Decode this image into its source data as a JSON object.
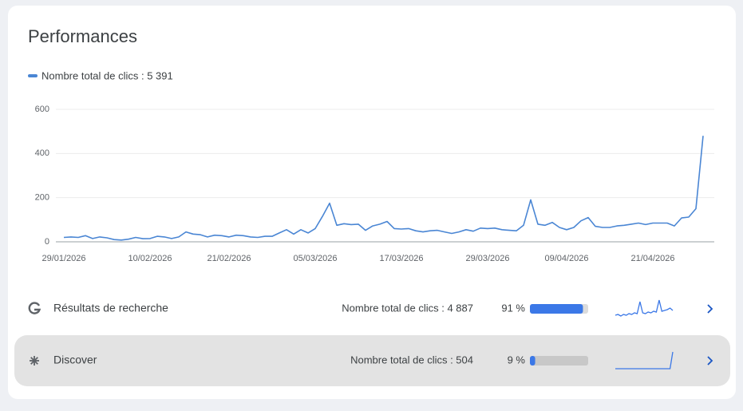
{
  "chart_data": {
    "type": "line",
    "title": "Performances",
    "categories": [
      "29/01/2026",
      null,
      null,
      null,
      null,
      null,
      null,
      null,
      null,
      null,
      null,
      null,
      "10/02/2026",
      null,
      null,
      null,
      null,
      null,
      null,
      null,
      null,
      null,
      null,
      "21/02/2026",
      null,
      null,
      null,
      null,
      null,
      null,
      null,
      null,
      null,
      null,
      null,
      "05/03/2026",
      null,
      null,
      null,
      null,
      null,
      null,
      null,
      null,
      null,
      null,
      null,
      "17/03/2026",
      null,
      null,
      null,
      null,
      null,
      null,
      null,
      null,
      null,
      null,
      null,
      "29/03/2026",
      null,
      null,
      null,
      null,
      null,
      null,
      null,
      null,
      null,
      null,
      "09/04/2026",
      null,
      null,
      null,
      null,
      null,
      null,
      null,
      null,
      null,
      null,
      null,
      "21/04/2026",
      null,
      null,
      null,
      null,
      null,
      null,
      null
    ],
    "series": [
      {
        "name": "Nombre total de clics : 5 391",
        "color": "#4a86d4",
        "values": [
          20,
          22,
          20,
          28,
          15,
          22,
          18,
          10,
          8,
          12,
          20,
          14,
          15,
          25,
          22,
          15,
          22,
          45,
          35,
          32,
          22,
          30,
          28,
          22,
          30,
          28,
          22,
          20,
          25,
          25,
          40,
          55,
          35,
          55,
          40,
          60,
          115,
          175,
          75,
          82,
          78,
          80,
          52,
          72,
          80,
          92,
          60,
          58,
          60,
          50,
          45,
          50,
          52,
          45,
          38,
          45,
          55,
          48,
          62,
          60,
          62,
          55,
          52,
          50,
          75,
          190,
          80,
          75,
          88,
          65,
          55,
          65,
          95,
          110,
          70,
          65,
          65,
          72,
          75,
          80,
          85,
          78,
          85,
          85,
          85,
          72,
          108,
          112,
          150,
          480
        ]
      }
    ],
    "ylim": [
      0,
      600
    ],
    "yticks": [
      0,
      200,
      400,
      600
    ],
    "grid": true
  },
  "sources": [
    {
      "label": "Résultats de recherche",
      "clicks": "Nombre total de clics : 4 887",
      "share": 91,
      "share_label": "91 %",
      "highlighted": false,
      "spark": [
        3,
        4,
        2,
        4,
        3,
        5,
        4,
        6,
        5,
        20,
        6,
        5,
        7,
        6,
        8,
        7,
        22,
        8,
        9,
        10,
        12,
        9
      ]
    },
    {
      "label": "Discover",
      "clicks": "Nombre total de clics : 504",
      "share": 9,
      "share_label": "9 %",
      "highlighted": true,
      "spark": [
        1,
        1,
        1,
        1,
        1,
        1,
        1,
        1,
        1,
        1,
        1,
        1,
        1,
        1,
        1,
        1,
        1,
        1,
        1,
        1,
        1,
        22
      ]
    }
  ]
}
